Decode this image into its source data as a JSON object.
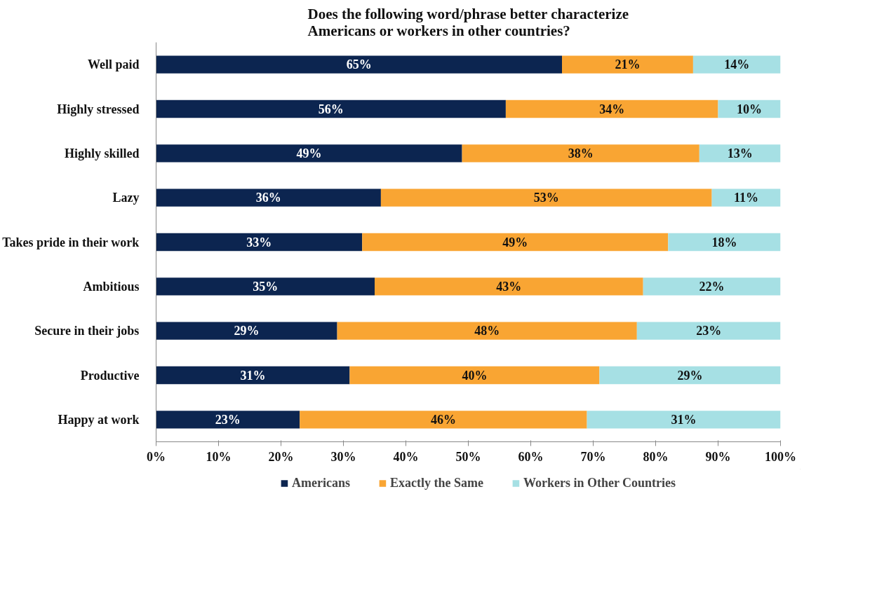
{
  "chart_data": {
    "type": "bar",
    "orientation": "horizontal",
    "stacked": true,
    "title": "Does the following word/phrase better characterize\nAmericans or workers in other countries?",
    "categories": [
      "Well paid",
      "Highly stressed",
      "Highly skilled",
      "Lazy",
      "Takes pride in their work",
      "Ambitious",
      "Secure in their jobs",
      "Productive",
      "Happy at work"
    ],
    "series": [
      {
        "name": "Americans",
        "color": "#0c2550",
        "values": [
          65,
          56,
          49,
          36,
          33,
          35,
          29,
          31,
          23
        ],
        "value_labels": [
          "65%",
          "56%",
          "49%",
          "36%",
          "33%",
          "35%",
          "29%",
          "31%",
          "23%"
        ]
      },
      {
        "name": "Exactly the Same",
        "color": "#f9a533",
        "values": [
          21,
          34,
          38,
          53,
          49,
          43,
          48,
          40,
          46
        ],
        "value_labels": [
          "21%",
          "34%",
          "38%",
          "53%",
          "49%",
          "43%",
          "48%",
          "40%",
          "46%"
        ]
      },
      {
        "name": "Workers in Other Countries",
        "color": "#a6e0e4",
        "values": [
          14,
          10,
          13,
          11,
          18,
          22,
          23,
          29,
          31
        ],
        "value_labels": [
          "14%",
          "10%",
          "13%",
          "11%",
          "18%",
          "22%",
          "23%",
          "29%",
          "31%"
        ]
      }
    ],
    "xlim": [
      0,
      100
    ],
    "xticks": [
      {
        "value": 0,
        "label": "0%"
      },
      {
        "value": 10,
        "label": "10%"
      },
      {
        "value": 20,
        "label": "20%"
      },
      {
        "value": 30,
        "label": "30%"
      },
      {
        "value": 40,
        "label": "40%"
      },
      {
        "value": 50,
        "label": "50%"
      },
      {
        "value": 60,
        "label": "60%"
      },
      {
        "value": 70,
        "label": "70%"
      },
      {
        "value": 80,
        "label": "80%"
      },
      {
        "value": 90,
        "label": "90%"
      },
      {
        "value": 100,
        "label": "100%"
      }
    ],
    "grid": false,
    "legend": "bottom"
  }
}
